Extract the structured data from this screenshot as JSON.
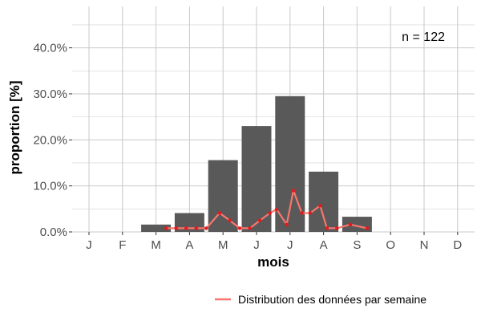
{
  "chart_data": {
    "type": "bar",
    "xlabel": "mois",
    "ylabel": "proportion [%]",
    "categories": [
      "J",
      "F",
      "M",
      "A",
      "M",
      "J",
      "J",
      "A",
      "S",
      "O",
      "N",
      "D"
    ],
    "series": [
      {
        "values": [
          0,
          0,
          1.6,
          4.1,
          15.6,
          23.0,
          29.5,
          13.1,
          3.3,
          0,
          0,
          0
        ]
      },
      {
        "name": "Distribution des données par semaine",
        "type": "line",
        "points": [
          [
            3.3,
            0.8
          ],
          [
            3.6,
            0.8
          ],
          [
            3.9,
            0.8
          ],
          [
            4.2,
            0.8
          ],
          [
            4.5,
            0.8
          ],
          [
            4.9,
            4.1
          ],
          [
            5.2,
            2.5
          ],
          [
            5.5,
            0.8
          ],
          [
            5.8,
            0.8
          ],
          [
            6.1,
            2.5
          ],
          [
            6.4,
            4.1
          ],
          [
            6.6,
            4.9
          ],
          [
            6.9,
            1.6
          ],
          [
            7.1,
            9.0
          ],
          [
            7.35,
            4.1
          ],
          [
            7.6,
            4.1
          ],
          [
            7.9,
            5.7
          ],
          [
            8.1,
            0.8
          ],
          [
            8.4,
            0.8
          ],
          [
            8.8,
            1.6
          ],
          [
            9.3,
            0.8
          ]
        ]
      }
    ],
    "yticks": [
      "0.0%",
      "10.0%",
      "20.0%",
      "30.0%",
      "40.0%"
    ],
    "ylim": [
      0,
      49
    ],
    "grid": true,
    "annotation": "n = 122",
    "legend": "bottom-right",
    "colors": {
      "bar": "#595959",
      "line": "#f8766d",
      "point": "#e31a1c",
      "grid": "#c8c8c8"
    }
  }
}
